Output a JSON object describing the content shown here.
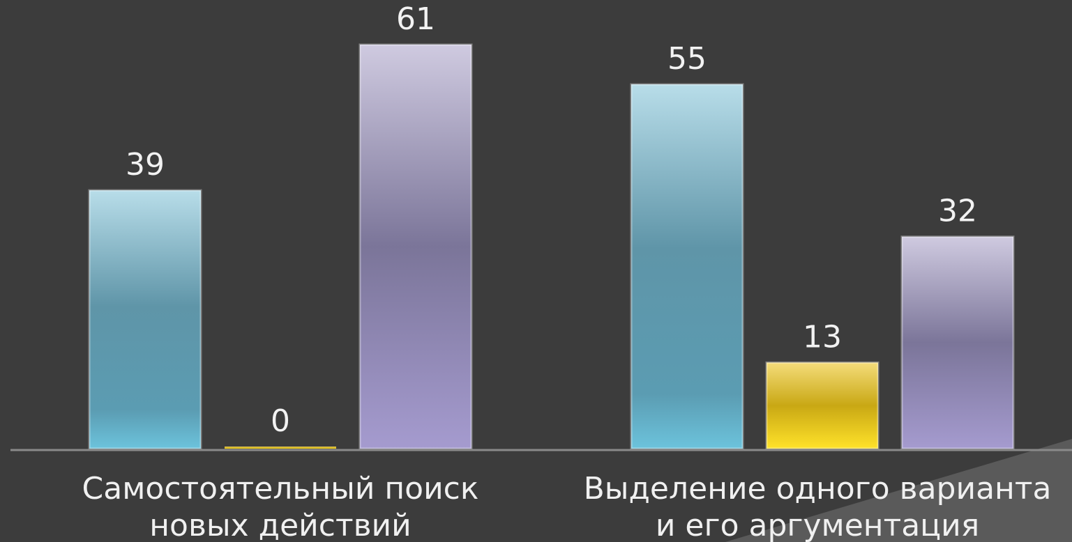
{
  "chart_data": {
    "type": "bar",
    "categories": [
      [
        "Самостоятельный поиск",
        "новых действий"
      ],
      [
        "Выделение одного варианта",
        "и его аргументация"
      ]
    ],
    "series": [
      {
        "values": [
          39,
          55
        ],
        "color": "#6fb8d0"
      },
      {
        "values": [
          0,
          13
        ],
        "color": "#e3bf1c"
      },
      {
        "values": [
          61,
          32
        ],
        "color": "#9d92c2"
      }
    ],
    "ylim": [
      0,
      61
    ],
    "grid": false,
    "legend": "none",
    "colors": {
      "background": "#3c3c3c",
      "axis": "#8a8a8a",
      "text": "#f0f0f0"
    }
  }
}
